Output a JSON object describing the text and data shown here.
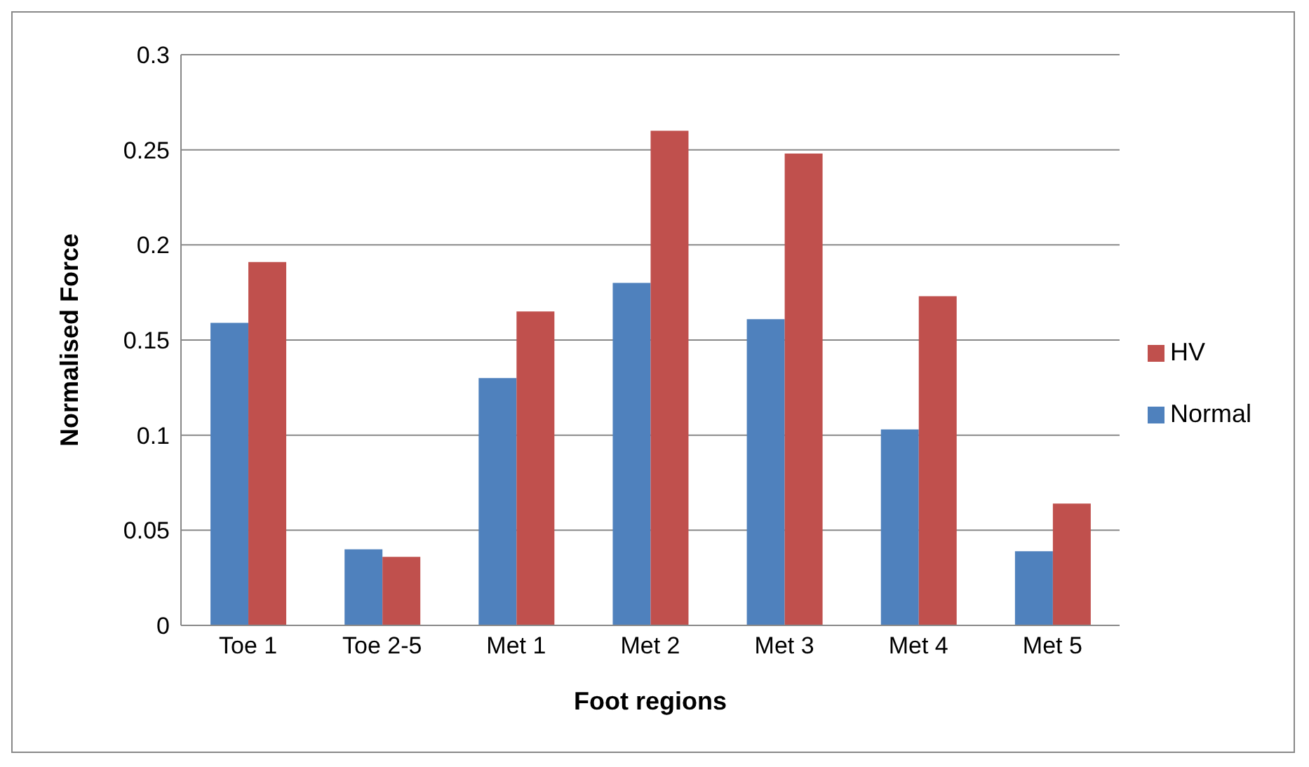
{
  "chart_data": {
    "type": "bar",
    "xlabel": "Foot regions",
    "ylabel": "Normalised Force",
    "categories": [
      "Toe 1",
      "Toe 2-5",
      "Met 1",
      "Met 2",
      "Met 3",
      "Met 4",
      "Met 5"
    ],
    "series": [
      {
        "name": "Normal",
        "color": "#4f81bd",
        "values": [
          0.159,
          0.04,
          0.13,
          0.18,
          0.161,
          0.103,
          0.039
        ]
      },
      {
        "name": "HV",
        "color": "#c0504d",
        "values": [
          0.191,
          0.036,
          0.165,
          0.26,
          0.248,
          0.173,
          0.064
        ]
      }
    ],
    "ylim": [
      0,
      0.3
    ],
    "yticks": [
      0,
      0.05,
      0.1,
      0.15,
      0.2,
      0.25,
      0.3
    ],
    "grid": "y",
    "legend": "right"
  }
}
